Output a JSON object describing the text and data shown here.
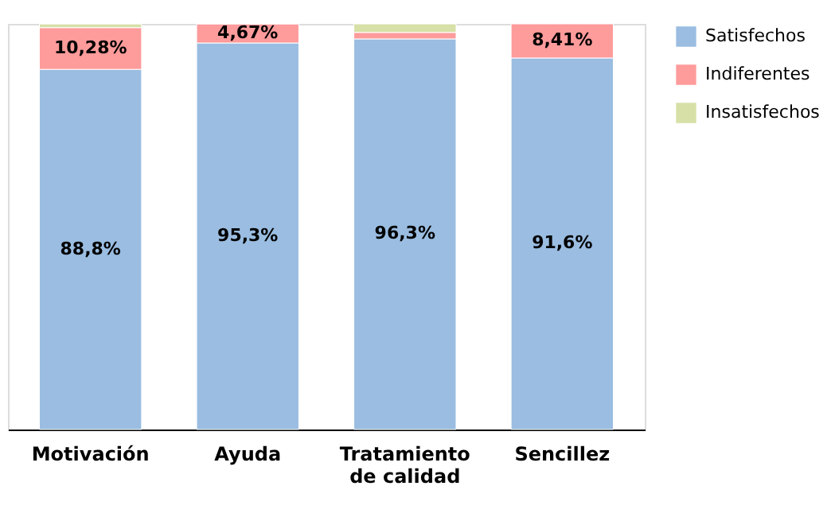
{
  "chart_data": {
    "type": "bar",
    "stacked": true,
    "categories": [
      "Motivación",
      "Ayuda",
      "Tratamiento de calidad",
      "Sencillez"
    ],
    "series": [
      {
        "name": "Satisfechos",
        "color": "#9abde1",
        "values": [
          88.8,
          95.3,
          96.3,
          91.6
        ],
        "value_labels": [
          "88,8%",
          "95,3%",
          "96,3%",
          "91,6%"
        ]
      },
      {
        "name": "Indiferentes",
        "color": "#fe9b9b",
        "values": [
          10.28,
          4.67,
          1.6,
          8.41
        ],
        "value_labels": [
          "10,28%",
          "4,67%",
          null,
          "8,41%"
        ]
      },
      {
        "name": "Insatisfechos",
        "color": "#d7e0a6",
        "values": [
          0.9,
          null,
          2.1,
          null
        ],
        "value_labels": [
          null,
          null,
          null,
          null
        ]
      }
    ],
    "legend": "top right"
  }
}
